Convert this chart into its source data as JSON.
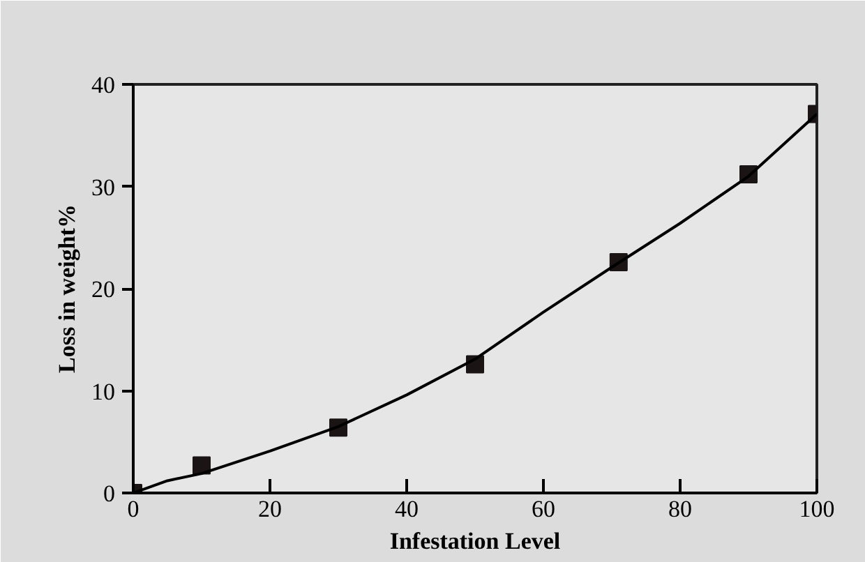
{
  "chart_data": {
    "type": "scatter",
    "xlabel": "Infestation Level",
    "ylabel": "Loss in weight%",
    "xlim": [
      0,
      100
    ],
    "ylim": [
      0,
      40
    ],
    "xticks": [
      0,
      20,
      40,
      60,
      80,
      100
    ],
    "yticks": [
      0,
      10,
      20,
      30,
      40
    ],
    "grid": false,
    "series": [
      {
        "marker": "square",
        "color": "#1a1414",
        "x": [
          0,
          10,
          30,
          50,
          71,
          90,
          100
        ],
        "values": [
          0,
          2.7,
          6.4,
          12.6,
          22.6,
          31.2,
          37.1
        ]
      },
      {
        "type": "line",
        "marker": "none",
        "color": "#000000",
        "line_style": "solid",
        "x": [
          0,
          5,
          10,
          20,
          30,
          40,
          50,
          60,
          70,
          80,
          90,
          100
        ],
        "values": [
          0,
          1.2,
          1.9,
          4.1,
          6.5,
          9.6,
          13.1,
          17.7,
          22.1,
          26.4,
          31.0,
          37.1
        ]
      }
    ]
  }
}
